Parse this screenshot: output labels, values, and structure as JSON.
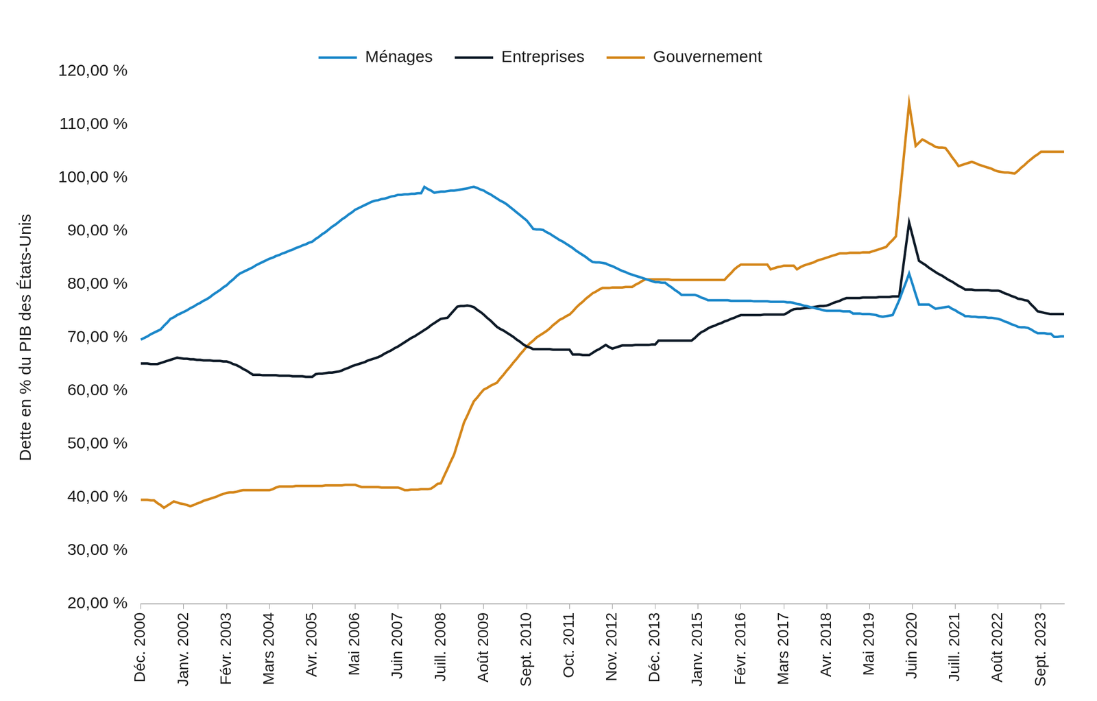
{
  "chart_data": {
    "type": "line",
    "y_label": "Dette en % du PIB des États-Unis",
    "legend": "top",
    "grid": false,
    "ylim": [
      20,
      120
    ],
    "yticks": [
      {
        "value": 20,
        "label": "20,00 %"
      },
      {
        "value": 30,
        "label": "30,00 %"
      },
      {
        "value": 40,
        "label": "40,00 %"
      },
      {
        "value": 50,
        "label": "50,00 %"
      },
      {
        "value": 60,
        "label": "60,00 %"
      },
      {
        "value": 70,
        "label": "70,00 %"
      },
      {
        "value": 80,
        "label": "80,00 %"
      },
      {
        "value": 90,
        "label": "90,00 %"
      },
      {
        "value": 100,
        "label": "100,00 %"
      },
      {
        "value": 110,
        "label": "110,00 %"
      },
      {
        "value": 120,
        "label": "120,00 %"
      }
    ],
    "categories": [
      "Déc. 2000",
      null,
      null,
      null,
      null,
      null,
      null,
      null,
      null,
      null,
      null,
      null,
      null,
      "Janv. 2002",
      null,
      null,
      null,
      null,
      null,
      null,
      null,
      null,
      null,
      null,
      null,
      null,
      "Févr. 2003",
      null,
      null,
      null,
      null,
      null,
      null,
      null,
      null,
      null,
      null,
      null,
      null,
      "Mars 2004",
      null,
      null,
      null,
      null,
      null,
      null,
      null,
      null,
      null,
      null,
      null,
      null,
      "Avr. 2005",
      null,
      null,
      null,
      null,
      null,
      null,
      null,
      null,
      null,
      null,
      null,
      null,
      "Mai 2006",
      null,
      null,
      null,
      null,
      null,
      null,
      null,
      null,
      null,
      null,
      null,
      null,
      "Juin 2007",
      null,
      null,
      null,
      null,
      null,
      null,
      null,
      null,
      null,
      null,
      null,
      null,
      "Juill. 2008",
      null,
      null,
      null,
      null,
      null,
      null,
      null,
      null,
      null,
      null,
      null,
      null,
      "Août 2009",
      null,
      null,
      null,
      null,
      null,
      null,
      null,
      null,
      null,
      null,
      null,
      null,
      "Sept. 2010",
      null,
      null,
      null,
      null,
      null,
      null,
      null,
      null,
      null,
      null,
      null,
      null,
      "Oct. 2011",
      null,
      null,
      null,
      null,
      null,
      null,
      null,
      null,
      null,
      null,
      null,
      null,
      "Nov. 2012",
      null,
      null,
      null,
      null,
      null,
      null,
      null,
      null,
      null,
      null,
      null,
      null,
      "Déc. 2013",
      null,
      null,
      null,
      null,
      null,
      null,
      null,
      null,
      null,
      null,
      null,
      null,
      "Janv. 2015",
      null,
      null,
      null,
      null,
      null,
      null,
      null,
      null,
      null,
      null,
      null,
      null,
      "Févr. 2016",
      null,
      null,
      null,
      null,
      null,
      null,
      null,
      null,
      null,
      null,
      null,
      null,
      "Mars 2017",
      null,
      null,
      null,
      null,
      null,
      null,
      null,
      null,
      null,
      null,
      null,
      null,
      "Avr. 2018",
      null,
      null,
      null,
      null,
      null,
      null,
      null,
      null,
      null,
      null,
      null,
      null,
      "Mai 2019",
      null,
      null,
      null,
      null,
      null,
      null,
      null,
      null,
      null,
      null,
      null,
      null,
      "Juin 2020",
      null,
      null,
      null,
      null,
      null,
      null,
      null,
      null,
      null,
      null,
      null,
      null,
      "Juill. 2021",
      null,
      null,
      null,
      null,
      null,
      null,
      null,
      null,
      null,
      null,
      null,
      null,
      "Août 2022",
      null,
      null,
      null,
      null,
      null,
      null,
      null,
      null,
      null,
      null,
      null,
      null,
      "Sept. 2023",
      null,
      null,
      null,
      null,
      null,
      null,
      null
    ],
    "series": [
      {
        "name": "Ménages",
        "color": "#1b87c9",
        "line_style": "solid",
        "marker": "none",
        "values": [
          69.6,
          69.9,
          70.2,
          70.6,
          70.9,
          71.2,
          71.5,
          72.2,
          72.8,
          73.5,
          73.8,
          74.2,
          74.5,
          74.8,
          75.1,
          75.5,
          75.8,
          76.2,
          76.5,
          76.9,
          77.2,
          77.6,
          78.1,
          78.5,
          78.9,
          79.4,
          79.8,
          80.4,
          80.9,
          81.5,
          82.0,
          82.3,
          82.6,
          82.9,
          83.2,
          83.6,
          83.9,
          84.2,
          84.5,
          84.8,
          85.0,
          85.3,
          85.5,
          85.8,
          86.0,
          86.3,
          86.5,
          86.8,
          87.0,
          87.3,
          87.5,
          87.8,
          88.0,
          88.5,
          88.9,
          89.4,
          89.8,
          90.3,
          90.8,
          91.2,
          91.7,
          92.2,
          92.6,
          93.1,
          93.5,
          94.0,
          94.3,
          94.6,
          94.9,
          95.2,
          95.5,
          95.7,
          95.8,
          96.0,
          96.1,
          96.3,
          96.5,
          96.6,
          96.8,
          96.8,
          96.9,
          96.9,
          97.0,
          97.0,
          97.1,
          97.1,
          98.3,
          97.9,
          97.6,
          97.2,
          97.3,
          97.4,
          97.4,
          97.5,
          97.6,
          97.6,
          97.7,
          97.8,
          97.9,
          98.0,
          98.2,
          98.3,
          98.1,
          97.8,
          97.6,
          97.2,
          96.9,
          96.5,
          96.1,
          95.7,
          95.4,
          95.0,
          94.5,
          94.0,
          93.5,
          93.0,
          92.5,
          92.0,
          91.2,
          90.4,
          90.3,
          90.3,
          90.2,
          89.8,
          89.5,
          89.1,
          88.7,
          88.3,
          88.0,
          87.6,
          87.2,
          86.8,
          86.3,
          85.9,
          85.5,
          85.1,
          84.6,
          84.2,
          84.1,
          84.1,
          84.0,
          83.9,
          83.6,
          83.4,
          83.1,
          82.8,
          82.5,
          82.3,
          82.0,
          81.8,
          81.6,
          81.4,
          81.2,
          81.0,
          80.8,
          80.6,
          80.4,
          80.4,
          80.3,
          80.3,
          79.8,
          79.4,
          78.9,
          78.5,
          78.0,
          78.0,
          78.0,
          78.0,
          78.0,
          77.8,
          77.5,
          77.3,
          77.0,
          77.0,
          77.0,
          77.0,
          77.0,
          77.0,
          77.0,
          76.9,
          76.9,
          76.9,
          76.9,
          76.9,
          76.9,
          76.9,
          76.8,
          76.8,
          76.8,
          76.8,
          76.8,
          76.7,
          76.7,
          76.7,
          76.7,
          76.7,
          76.6,
          76.6,
          76.5,
          76.3,
          76.2,
          76.0,
          75.9,
          75.7,
          75.6,
          75.4,
          75.3,
          75.1,
          75.0,
          75.0,
          75.0,
          75.0,
          75.0,
          74.9,
          74.9,
          74.9,
          74.5,
          74.5,
          74.5,
          74.4,
          74.4,
          74.4,
          74.3,
          74.2,
          74.0,
          73.9,
          74.0,
          74.1,
          74.2,
          75.6,
          77.0,
          78.7,
          80.3,
          82.0,
          80.1,
          78.1,
          76.2,
          76.2,
          76.2,
          76.2,
          75.8,
          75.4,
          75.5,
          75.6,
          75.7,
          75.8,
          75.4,
          75.1,
          74.7,
          74.4,
          74.0,
          74.0,
          73.9,
          73.9,
          73.8,
          73.8,
          73.8,
          73.7,
          73.7,
          73.6,
          73.5,
          73.3,
          73.0,
          72.8,
          72.5,
          72.3,
          72.0,
          71.9,
          71.9,
          71.8,
          71.5,
          71.1,
          70.8,
          70.8,
          70.8,
          70.7,
          70.7,
          70.1,
          70.1,
          70.2,
          70.2
        ]
      },
      {
        "name": "Entreprises",
        "color": "#0e1a27",
        "line_style": "solid",
        "marker": "none",
        "values": [
          65.1,
          65.1,
          65.1,
          65.0,
          65.0,
          65.0,
          65.2,
          65.4,
          65.6,
          65.8,
          66.0,
          66.2,
          66.1,
          66.0,
          66.0,
          65.9,
          65.9,
          65.8,
          65.8,
          65.7,
          65.7,
          65.7,
          65.6,
          65.6,
          65.6,
          65.5,
          65.5,
          65.3,
          65.0,
          64.8,
          64.5,
          64.1,
          63.8,
          63.4,
          63.0,
          63.0,
          63.0,
          62.9,
          62.9,
          62.9,
          62.9,
          62.9,
          62.8,
          62.8,
          62.8,
          62.8,
          62.7,
          62.7,
          62.7,
          62.7,
          62.6,
          62.6,
          62.6,
          63.1,
          63.2,
          63.2,
          63.3,
          63.4,
          63.4,
          63.5,
          63.6,
          63.8,
          64.1,
          64.3,
          64.6,
          64.8,
          65.0,
          65.2,
          65.4,
          65.7,
          65.9,
          66.1,
          66.3,
          66.6,
          67.0,
          67.3,
          67.6,
          68.0,
          68.3,
          68.7,
          69.1,
          69.5,
          69.9,
          70.2,
          70.6,
          71.0,
          71.4,
          71.8,
          72.3,
          72.7,
          73.1,
          73.5,
          73.6,
          73.7,
          74.4,
          75.1,
          75.8,
          75.9,
          75.9,
          76.0,
          75.9,
          75.7,
          75.2,
          74.8,
          74.3,
          73.7,
          73.2,
          72.6,
          72.0,
          71.6,
          71.3,
          70.9,
          70.5,
          70.1,
          69.6,
          69.2,
          68.7,
          68.3,
          68.1,
          67.8,
          67.8,
          67.8,
          67.8,
          67.8,
          67.8,
          67.7,
          67.7,
          67.7,
          67.7,
          67.7,
          67.7,
          66.8,
          66.8,
          66.8,
          66.7,
          66.7,
          66.7,
          67.1,
          67.5,
          67.8,
          68.2,
          68.6,
          68.2,
          67.9,
          68.1,
          68.3,
          68.5,
          68.5,
          68.5,
          68.5,
          68.6,
          68.6,
          68.6,
          68.6,
          68.6,
          68.7,
          68.7,
          69.4,
          69.4,
          69.4,
          69.4,
          69.4,
          69.4,
          69.4,
          69.4,
          69.4,
          69.4,
          69.4,
          69.9,
          70.5,
          71.0,
          71.3,
          71.7,
          72.0,
          72.2,
          72.5,
          72.7,
          73.0,
          73.2,
          73.5,
          73.7,
          74.0,
          74.2,
          74.2,
          74.2,
          74.2,
          74.2,
          74.2,
          74.2,
          74.3,
          74.3,
          74.3,
          74.3,
          74.3,
          74.3,
          74.3,
          74.6,
          75.0,
          75.3,
          75.4,
          75.4,
          75.5,
          75.6,
          75.6,
          75.7,
          75.8,
          75.9,
          75.9,
          76.0,
          76.2,
          76.5,
          76.7,
          76.9,
          77.2,
          77.4,
          77.4,
          77.4,
          77.4,
          77.4,
          77.5,
          77.5,
          77.5,
          77.5,
          77.5,
          77.6,
          77.6,
          77.6,
          77.6,
          77.7,
          77.7,
          77.7,
          82.3,
          87.0,
          91.6,
          89.2,
          86.8,
          84.4,
          84.0,
          83.6,
          83.1,
          82.7,
          82.3,
          81.9,
          81.6,
          81.2,
          80.8,
          80.5,
          80.1,
          79.7,
          79.4,
          79.0,
          79.0,
          79.0,
          78.9,
          78.9,
          78.9,
          78.9,
          78.9,
          78.8,
          78.8,
          78.8,
          78.6,
          78.3,
          78.1,
          77.8,
          77.6,
          77.3,
          77.2,
          77.0,
          76.9,
          76.2,
          75.6,
          74.9,
          74.8,
          74.6,
          74.5,
          74.4,
          74.4,
          74.4,
          74.4,
          74.4
        ]
      },
      {
        "name": "Gouvernement",
        "color": "#d4861a",
        "line_style": "solid",
        "marker": "none",
        "values": [
          39.5,
          39.5,
          39.5,
          39.4,
          39.4,
          38.9,
          38.5,
          38.0,
          38.4,
          38.8,
          39.2,
          39.0,
          38.8,
          38.7,
          38.5,
          38.3,
          38.5,
          38.8,
          39.0,
          39.3,
          39.5,
          39.7,
          39.9,
          40.1,
          40.4,
          40.6,
          40.8,
          40.9,
          40.9,
          41.0,
          41.2,
          41.3,
          41.3,
          41.3,
          41.3,
          41.3,
          41.3,
          41.3,
          41.3,
          41.3,
          41.5,
          41.8,
          42.0,
          42.0,
          42.0,
          42.0,
          42.0,
          42.1,
          42.1,
          42.1,
          42.1,
          42.1,
          42.1,
          42.1,
          42.1,
          42.1,
          42.2,
          42.2,
          42.2,
          42.2,
          42.2,
          42.2,
          42.3,
          42.3,
          42.3,
          42.3,
          42.1,
          41.9,
          41.9,
          41.9,
          41.9,
          41.9,
          41.9,
          41.8,
          41.8,
          41.8,
          41.8,
          41.8,
          41.8,
          41.6,
          41.3,
          41.3,
          41.4,
          41.4,
          41.4,
          41.5,
          41.5,
          41.5,
          41.6,
          42.0,
          42.5,
          42.6,
          44.0,
          45.3,
          46.7,
          48.0,
          50.0,
          52.0,
          54.0,
          55.3,
          56.7,
          58.0,
          58.7,
          59.5,
          60.2,
          60.5,
          60.9,
          61.2,
          61.5,
          62.3,
          63.0,
          63.8,
          64.5,
          65.3,
          66.0,
          66.8,
          67.5,
          68.3,
          68.9,
          69.4,
          70.0,
          70.4,
          70.8,
          71.2,
          71.7,
          72.3,
          72.8,
          73.3,
          73.6,
          74.0,
          74.3,
          74.9,
          75.6,
          76.2,
          76.7,
          77.3,
          77.8,
          78.3,
          78.6,
          79.0,
          79.3,
          79.3,
          79.3,
          79.4,
          79.4,
          79.4,
          79.4,
          79.5,
          79.5,
          79.5,
          79.9,
          80.2,
          80.6,
          80.9,
          80.9,
          80.9,
          80.9,
          80.9,
          80.9,
          80.9,
          80.9,
          80.8,
          80.8,
          80.8,
          80.8,
          80.8,
          80.8,
          80.8,
          80.8,
          80.8,
          80.8,
          80.8,
          80.8,
          80.8,
          80.8,
          80.8,
          80.8,
          80.8,
          81.5,
          82.1,
          82.8,
          83.3,
          83.7,
          83.7,
          83.7,
          83.7,
          83.7,
          83.7,
          83.7,
          83.7,
          83.7,
          82.8,
          83.0,
          83.2,
          83.3,
          83.5,
          83.5,
          83.5,
          83.5,
          82.8,
          83.2,
          83.5,
          83.7,
          83.9,
          84.1,
          84.4,
          84.6,
          84.8,
          85.0,
          85.2,
          85.4,
          85.6,
          85.8,
          85.8,
          85.8,
          85.9,
          85.9,
          85.9,
          85.9,
          86.0,
          86.0,
          86.0,
          86.2,
          86.4,
          86.6,
          86.8,
          87.0,
          87.7,
          88.3,
          89.0,
          95.3,
          101.5,
          107.8,
          114.0,
          110.0,
          106.0,
          106.6,
          107.2,
          106.9,
          106.5,
          106.2,
          105.8,
          105.7,
          105.7,
          105.6,
          104.8,
          103.9,
          103.1,
          102.2,
          102.4,
          102.6,
          102.8,
          103.0,
          102.8,
          102.5,
          102.3,
          102.1,
          101.9,
          101.7,
          101.4,
          101.2,
          101.1,
          101.0,
          101.0,
          100.9,
          100.8,
          101.3,
          101.9,
          102.4,
          103.0,
          103.5,
          104.0,
          104.4,
          104.9,
          104.9,
          104.9,
          104.9,
          104.9,
          104.9,
          104.9,
          104.9
        ]
      }
    ]
  }
}
